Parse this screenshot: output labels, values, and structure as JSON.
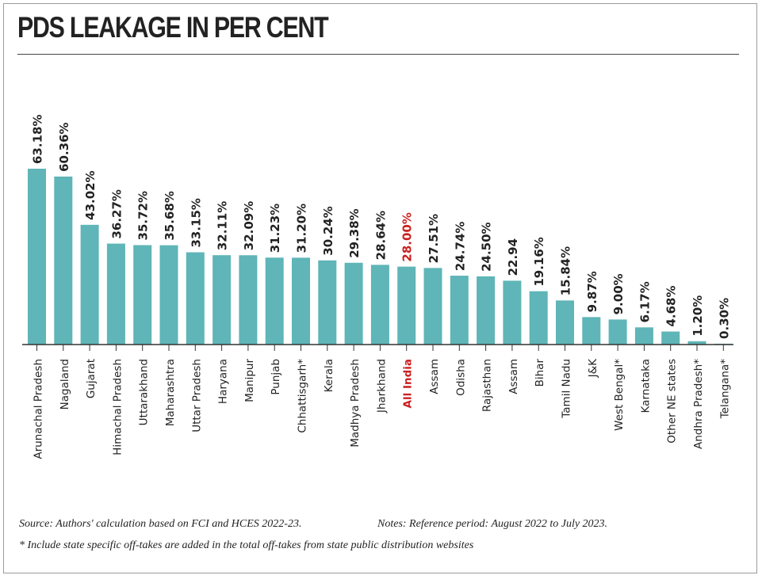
{
  "title": "PDS LEAKAGE IN PER CENT",
  "notes": {
    "source": "Source: Authors' calculation based on FCI and HCES 2022-23.",
    "reference": "Notes: Reference period: August 2022 to July 2023.",
    "asterisk": "* Include state specific off-takes are added in the total off-takes from state public distribution websites"
  },
  "colors": {
    "bar": "#5fb5b7",
    "highlight_label": "#cc1f1f",
    "text": "#222222",
    "axis": "#333333"
  },
  "chart_data": {
    "type": "bar",
    "title": "PDS LEAKAGE IN PER CENT",
    "xlabel": "",
    "ylabel": "",
    "ylim": [
      0,
      63.18
    ],
    "grid": false,
    "legend": "none",
    "highlight_category": "All India",
    "categories": [
      "Arunachal Pradesh",
      "Nagaland",
      "Gujarat",
      "Himachal Pradesh",
      "Uttarakhand",
      "Maharashtra",
      "Uttar Pradesh",
      "Haryana",
      "Manipur",
      "Punjab",
      "Chhattisgarh*",
      "Kerala",
      "Madhya Pradesh",
      "Jharkhand",
      "All India",
      "Assam",
      "Odisha",
      "Rajasthan",
      "Assam",
      "Bihar",
      "Tamil Nadu",
      "J&K",
      "West Bengal*",
      "Karnataka",
      "Other NE states",
      "Andhra Pradesh*",
      "Telangana*"
    ],
    "values": [
      63.18,
      60.36,
      43.02,
      36.27,
      35.72,
      35.68,
      33.15,
      32.11,
      32.09,
      31.23,
      31.2,
      30.24,
      29.38,
      28.64,
      28.0,
      27.51,
      24.74,
      24.5,
      22.94,
      19.16,
      15.84,
      9.87,
      9.0,
      6.17,
      4.68,
      1.2,
      0.3
    ],
    "data_labels": [
      "63.18%",
      "60.36%",
      "43.02%",
      "36.27%",
      "35.72%",
      "35.68%",
      "33.15%",
      "32.11%",
      "32.09%",
      "31.23%",
      "31.20%",
      "30.24%",
      "29.38%",
      "28.64%",
      "28.00%",
      "27.51%",
      "24.74%",
      "24.50%",
      "22.94",
      "19.16%",
      "15.84%",
      "9.87%",
      "9.00%",
      "6.17%",
      "4.68%",
      "1.20%",
      "0.30%"
    ]
  }
}
